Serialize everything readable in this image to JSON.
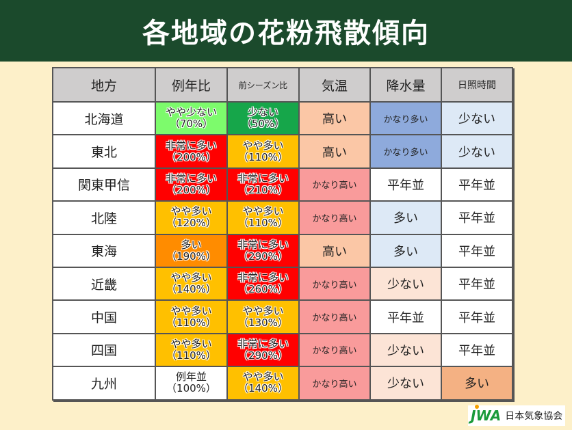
{
  "title": "各地域の花粉飛散傾向",
  "headers": [
    "地方",
    "例年比",
    "前シーズン比",
    "気温",
    "降水量",
    "日照時間"
  ],
  "rows": [
    {
      "region": "北海道",
      "yearly": [
        "やや少ない",
        "（70%）"
      ],
      "yearly_color": "#7dfb6c",
      "prev": [
        "少ない",
        "（50%）"
      ],
      "prev_color": "#16a64a",
      "temp": "高い",
      "temp_color": "#fbc7a6",
      "rain": "かなり多い",
      "rain_color": "#8eaadc",
      "sun": "少ない",
      "sun_color": "#dde9f6"
    },
    {
      "region": "東北",
      "yearly": [
        "非常に多い",
        "（200%）"
      ],
      "yearly_color": "#ff0000",
      "prev": [
        "やや多い",
        "（110%）"
      ],
      "prev_color": "#ffc000",
      "temp": "高い",
      "temp_color": "#fbc7a6",
      "rain": "かなり多い",
      "rain_color": "#8eaadc",
      "sun": "少ない",
      "sun_color": "#dde9f6"
    },
    {
      "region": "関東甲信",
      "yearly": [
        "非常に多い",
        "（200%）"
      ],
      "yearly_color": "#ff0000",
      "prev": [
        "非常に多い",
        "（210%）"
      ],
      "prev_color": "#ff0000",
      "temp": "かなり高い",
      "temp_color": "#f99b9b",
      "rain": "平年並",
      "rain_color": "#ffffff",
      "sun": "平年並",
      "sun_color": "#ffffff"
    },
    {
      "region": "北陸",
      "yearly": [
        "やや多い",
        "（120%）"
      ],
      "yearly_color": "#ffc000",
      "prev": [
        "やや多い",
        "（110%）"
      ],
      "prev_color": "#ffc000",
      "temp": "かなり高い",
      "temp_color": "#f99b9b",
      "rain": "多い",
      "rain_color": "#dde9f6",
      "sun": "平年並",
      "sun_color": "#ffffff"
    },
    {
      "region": "東海",
      "yearly": [
        "多い",
        "（190%）"
      ],
      "yearly_color": "#ff8c00",
      "prev": [
        "非常に多い",
        "（290%）"
      ],
      "prev_color": "#ff0000",
      "temp": "高い",
      "temp_color": "#fbc7a6",
      "rain": "多い",
      "rain_color": "#dde9f6",
      "sun": "平年並",
      "sun_color": "#ffffff"
    },
    {
      "region": "近畿",
      "yearly": [
        "やや多い",
        "（140%）"
      ],
      "yearly_color": "#ffc000",
      "prev": [
        "非常に多い",
        "（260%）"
      ],
      "prev_color": "#ff0000",
      "temp": "かなり高い",
      "temp_color": "#f99b9b",
      "rain": "少ない",
      "rain_color": "#fce4d6",
      "sun": "平年並",
      "sun_color": "#ffffff"
    },
    {
      "region": "中国",
      "yearly": [
        "やや多い",
        "（110%）"
      ],
      "yearly_color": "#ffc000",
      "prev": [
        "やや多い",
        "（130%）"
      ],
      "prev_color": "#ffc000",
      "temp": "かなり高い",
      "temp_color": "#f99b9b",
      "rain": "平年並",
      "rain_color": "#ffffff",
      "sun": "平年並",
      "sun_color": "#ffffff"
    },
    {
      "region": "四国",
      "yearly": [
        "やや多い",
        "（110%）"
      ],
      "yearly_color": "#ffc000",
      "prev": [
        "非常に多い",
        "（290%）"
      ],
      "prev_color": "#ff0000",
      "temp": "かなり高い",
      "temp_color": "#f99b9b",
      "rain": "少ない",
      "rain_color": "#fce4d6",
      "sun": "平年並",
      "sun_color": "#ffffff"
    },
    {
      "region": "九州",
      "yearly": [
        "例年並",
        "（100%）"
      ],
      "yearly_color": "#ffffff",
      "prev": [
        "やや多い",
        "（140%）"
      ],
      "prev_color": "#ffc000",
      "temp": "かなり高い",
      "temp_color": "#f99b9b",
      "rain": "少ない",
      "rain_color": "#fce4d6",
      "sun": "多い",
      "sun_color": "#f4b183"
    }
  ],
  "logo": {
    "mark": "JWA",
    "name": "日本気象協会"
  }
}
